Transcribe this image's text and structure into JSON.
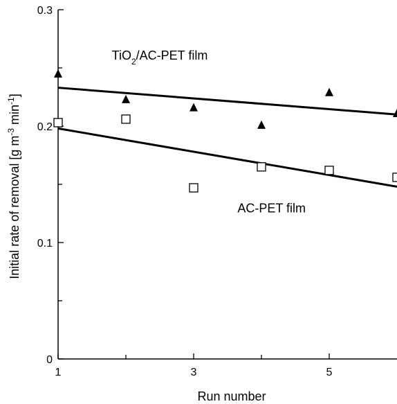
{
  "chart_data": {
    "type": "scatter",
    "xlabel": "Run number",
    "ylabel_parts": [
      "Initial rate of removal [g m",
      "-3",
      " min",
      "-1",
      "]"
    ],
    "xlim": [
      1,
      6
    ],
    "ylim": [
      0,
      0.3
    ],
    "x_tick_labels": [
      {
        "value": 1,
        "label": "1"
      },
      {
        "value": 3,
        "label": "3"
      },
      {
        "value": 5,
        "label": "5"
      }
    ],
    "x_minor_ticks": [
      2,
      4
    ],
    "y_tick_labels": [
      {
        "value": 0,
        "label": "0"
      },
      {
        "value": 0.1,
        "label": "0.1"
      },
      {
        "value": 0.2,
        "label": "0.2"
      },
      {
        "value": 0.3,
        "label": "0.3"
      }
    ],
    "y_minor_ticks": [
      0.05,
      0.15,
      0.25
    ],
    "series": [
      {
        "name_parts": [
          "TiO",
          "2",
          "/AC-PET film"
        ],
        "marker": "filled-triangle",
        "color": "#000000",
        "x": [
          1,
          2,
          3,
          4,
          5,
          6
        ],
        "y": [
          0.245,
          0.223,
          0.216,
          0.201,
          0.229,
          0.211
        ],
        "fit": {
          "x": [
            1,
            6
          ],
          "y": [
            0.233,
            0.21
          ]
        }
      },
      {
        "name": "AC-PET film",
        "marker": "open-square",
        "color": "#000000",
        "x": [
          1,
          2,
          3,
          4,
          5,
          6
        ],
        "y": [
          0.203,
          0.206,
          0.147,
          0.165,
          0.162,
          0.156
        ],
        "fit": {
          "x": [
            1,
            6
          ],
          "y": [
            0.198,
            0.148
          ]
        }
      }
    ],
    "annotations": [
      {
        "series_index": 0,
        "at": [
          2.5,
          0.257
        ]
      },
      {
        "series_index": 1,
        "at": [
          4.15,
          0.126
        ]
      }
    ]
  }
}
